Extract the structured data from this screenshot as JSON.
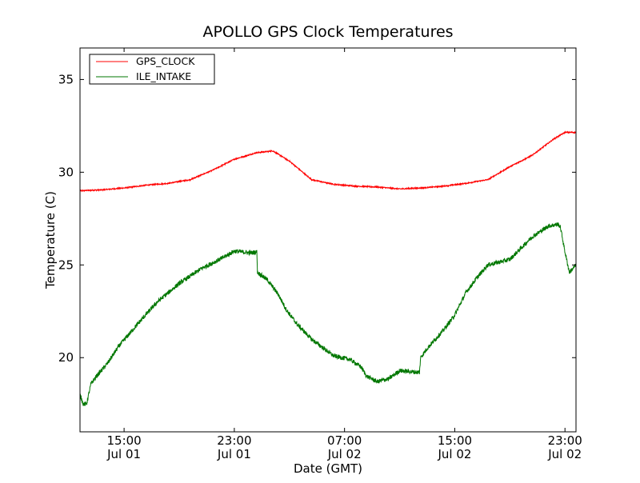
{
  "chart_data": {
    "type": "line",
    "title": "APOLLO GPS Clock Temperatures",
    "xlabel": "Date (GMT)",
    "ylabel": "Temperature (C)",
    "xlim_hours": [
      0,
      45
    ],
    "ylim": [
      16,
      36.7
    ],
    "grid": false,
    "legend_position": "top-left",
    "x_ticks": [
      {
        "hours": 4,
        "line1": "15:00",
        "line2": "Jul 01"
      },
      {
        "hours": 14,
        "line1": "23:00",
        "line2": "Jul 01"
      },
      {
        "hours": 24,
        "line1": "07:00",
        "line2": "Jul 02"
      },
      {
        "hours": 34,
        "line1": "15:00",
        "line2": "Jul 02"
      },
      {
        "hours": 44,
        "line1": "23:00",
        "line2": "Jul 02"
      }
    ],
    "y_ticks": [
      {
        "value": 20,
        "label": "20"
      },
      {
        "value": 25,
        "label": "25"
      },
      {
        "value": 30,
        "label": "30"
      },
      {
        "value": 35,
        "label": "35"
      }
    ],
    "series": [
      {
        "name": "GPS_CLOCK",
        "color": "#ff0000",
        "noise": 0.03,
        "x": [
          0,
          2,
          4,
          6,
          8,
          10,
          12,
          14,
          16,
          17.5,
          19,
          21,
          23,
          25,
          27,
          29,
          31,
          33,
          35,
          37,
          39,
          41,
          43,
          44,
          45
        ],
        "y": [
          29.0,
          29.05,
          29.15,
          29.3,
          29.4,
          29.6,
          30.1,
          30.7,
          31.05,
          31.15,
          30.6,
          29.6,
          29.35,
          29.25,
          29.2,
          29.1,
          29.15,
          29.25,
          29.4,
          29.6,
          30.3,
          30.9,
          31.8,
          32.15,
          32.15
        ]
      },
      {
        "name": "ILE_INTAKE",
        "color": "#007700",
        "noise": 0.12,
        "x": [
          0,
          0.3,
          0.6,
          1.0,
          1.5,
          2.5,
          3.5,
          4.5,
          5.5,
          7,
          9,
          11,
          13,
          14,
          15.5,
          16.05,
          16.1,
          17,
          18,
          18.7,
          19.7,
          21,
          23,
          24.5,
          25.5,
          26,
          27,
          27.5,
          28,
          29,
          30.8,
          30.9,
          31.5,
          33,
          34,
          35,
          36,
          37,
          39,
          41,
          42.5,
          43.4,
          43.6,
          44.0,
          44.4,
          45
        ],
        "y": [
          18.0,
          17.5,
          17.5,
          18.6,
          19.0,
          19.7,
          20.6,
          21.3,
          22.0,
          23.0,
          24.0,
          24.8,
          25.4,
          25.75,
          25.65,
          25.7,
          24.6,
          24.2,
          23.4,
          22.6,
          21.8,
          21.0,
          20.1,
          19.9,
          19.5,
          19.0,
          18.7,
          18.8,
          18.85,
          19.3,
          19.2,
          20.0,
          20.5,
          21.5,
          22.3,
          23.5,
          24.3,
          25.0,
          25.3,
          26.5,
          27.1,
          27.2,
          27.0,
          25.7,
          24.6,
          25.0
        ]
      }
    ]
  }
}
